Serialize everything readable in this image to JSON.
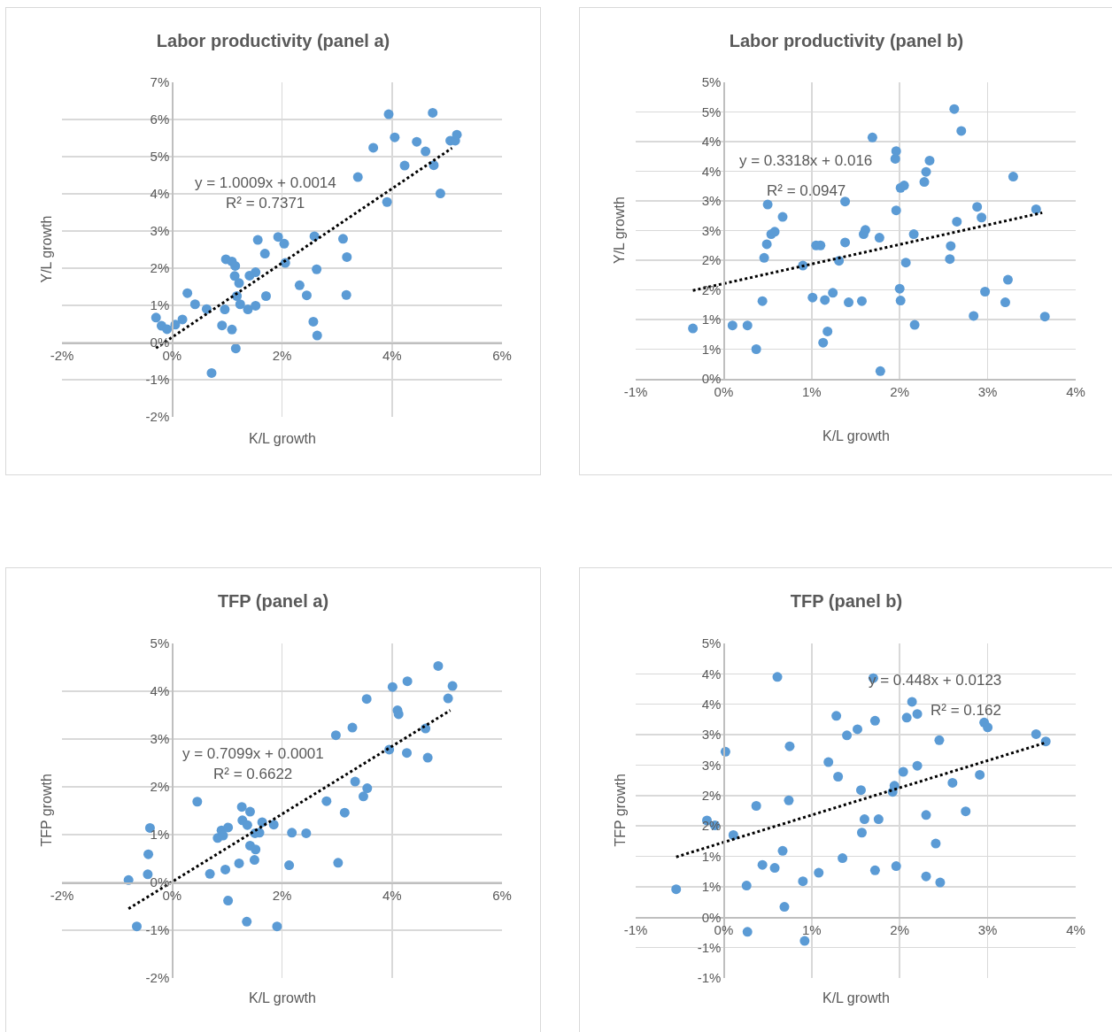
{
  "chart_data": [
    {
      "type": "scatter",
      "title": "Labor productivity (panel a)",
      "xlabel": "K/L growth",
      "ylabel": "Y/L growth",
      "grid": true,
      "marker": "circle",
      "xlim": [
        -0.02,
        0.06
      ],
      "xticks": [
        {
          "value": -0.02,
          "label": "-2%"
        },
        {
          "value": 0,
          "label": "0%"
        },
        {
          "value": 0.02,
          "label": "2%"
        },
        {
          "value": 0.04,
          "label": "4%"
        },
        {
          "value": 0.06,
          "label": "6%"
        }
      ],
      "ylim": [
        -0.02,
        0.07
      ],
      "yticks": [
        {
          "value": -0.02,
          "label": "-2%"
        },
        {
          "value": -0.01,
          "label": "-1%"
        },
        {
          "value": 0,
          "label": "0%"
        },
        {
          "value": 0.01,
          "label": "1%"
        },
        {
          "value": 0.02,
          "label": "2%"
        },
        {
          "value": 0.03,
          "label": "3%"
        },
        {
          "value": 0.04,
          "label": "4%"
        },
        {
          "value": 0.05,
          "label": "5%"
        },
        {
          "value": 0.06,
          "label": "6%"
        },
        {
          "value": 0.07,
          "label": "7%"
        }
      ],
      "annotations": [
        "y = 1.0009x + 0.0014",
        "R² = 0.7371"
      ],
      "series": [
        {
          "color": "#5b9bd5",
          "x": [
            -0.0029,
            -0.0019,
            -0.0009,
            0.0006,
            0.0019,
            0.0028,
            0.0042,
            0.0063,
            0.0072,
            0.0091,
            0.0096,
            0.0098,
            0.0109,
            0.0109,
            0.0115,
            0.0114,
            0.0116,
            0.0118,
            0.0122,
            0.0124,
            0.0138,
            0.0141,
            0.0152,
            0.0152,
            0.0156,
            0.0169,
            0.0171,
            0.0193,
            0.0204,
            0.0206,
            0.0232,
            0.0245,
            0.0257,
            0.0259,
            0.0263,
            0.0264,
            0.0311,
            0.0318,
            0.0317,
            0.0338,
            0.0366,
            0.0391,
            0.0394,
            0.0405,
            0.0423,
            0.0445,
            0.0461,
            0.0474,
            0.0476,
            0.0488,
            0.0506,
            0.0515,
            0.0518
          ],
          "values": [
            0.0067,
            0.0045,
            0.0036,
            0.0048,
            0.0062,
            0.0133,
            0.0103,
            0.009,
            -0.0082,
            0.0046,
            0.0089,
            0.0224,
            0.0035,
            0.0218,
            0.0206,
            0.0179,
            -0.0016,
            0.0125,
            0.016,
            0.0103,
            0.0089,
            0.018,
            0.0189,
            0.0099,
            0.0276,
            0.0239,
            0.0125,
            0.0284,
            0.0266,
            0.0214,
            0.0154,
            0.0127,
            0.0056,
            0.0286,
            0.0197,
            0.0019,
            0.0279,
            0.023,
            0.0128,
            0.0445,
            0.0524,
            0.0378,
            0.0614,
            0.0552,
            0.0476,
            0.054,
            0.0514,
            0.0618,
            0.0477,
            0.0401,
            0.0543,
            0.0543,
            0.0559
          ]
        },
        {
          "type": "line",
          "color": "#000000",
          "line_style": "dotted",
          "marker": "none",
          "x": [
            -0.0029,
            0.0509
          ],
          "values": [
            -0.0015,
            0.0523
          ]
        }
      ]
    },
    {
      "type": "scatter",
      "title": "Labor productivity (panel b)",
      "xlabel": "K/L growth",
      "ylabel": "Y/L growth",
      "grid": true,
      "marker": "circle",
      "xlim": [
        -0.01,
        0.04
      ],
      "xticks": [
        {
          "value": -0.01,
          "label": "-1%"
        },
        {
          "value": 0,
          "label": "0%"
        },
        {
          "value": 0.01,
          "label": "1%"
        },
        {
          "value": 0.02,
          "label": "2%"
        },
        {
          "value": 0.03,
          "label": "3%"
        },
        {
          "value": 0.04,
          "label": "4%"
        }
      ],
      "ylim": [
        0,
        0.05
      ],
      "yticks": [
        {
          "value": 0,
          "label": "0%"
        },
        {
          "value": 0.005,
          "label": "1%"
        },
        {
          "value": 0.01,
          "label": "1%"
        },
        {
          "value": 0.015,
          "label": "2%"
        },
        {
          "value": 0.02,
          "label": "2%"
        },
        {
          "value": 0.025,
          "label": "3%"
        },
        {
          "value": 0.03,
          "label": "3%"
        },
        {
          "value": 0.035,
          "label": "4%"
        },
        {
          "value": 0.04,
          "label": "4%"
        },
        {
          "value": 0.045,
          "label": "5%"
        },
        {
          "value": 0.05,
          "label": "5%"
        }
      ],
      "annotations": [
        "y = 0.3318x + 0.016",
        "R² = 0.0947"
      ],
      "series": [
        {
          "color": "#5b9bd5",
          "x": [
            -0.0035,
            0.001,
            0.0027,
            0.0037,
            0.0044,
            0.0046,
            0.0049,
            0.005,
            0.0054,
            0.0058,
            0.0067,
            0.009,
            0.0101,
            0.0105,
            0.011,
            0.0113,
            0.0115,
            0.0118,
            0.0124,
            0.0131,
            0.0138,
            0.0138,
            0.0142,
            0.0157,
            0.0159,
            0.0161,
            0.0169,
            0.0177,
            0.0178,
            0.0195,
            0.0196,
            0.0196,
            0.02,
            0.0201,
            0.0201,
            0.0205,
            0.0207,
            0.0216,
            0.0217,
            0.0228,
            0.023,
            0.0234,
            0.0257,
            0.0258,
            0.0262,
            0.0265,
            0.027,
            0.0284,
            0.0288,
            0.0293,
            0.0297,
            0.032,
            0.0323,
            0.0329,
            0.0355,
            0.0365
          ],
          "values": [
            0.0085,
            0.009,
            0.009,
            0.005,
            0.0131,
            0.0204,
            0.0227,
            0.0294,
            0.0244,
            0.0248,
            0.0273,
            0.0191,
            0.0137,
            0.0225,
            0.0225,
            0.0061,
            0.0133,
            0.008,
            0.0145,
            0.0199,
            0.0299,
            0.023,
            0.0129,
            0.0131,
            0.0244,
            0.0251,
            0.0407,
            0.0238,
            0.0013,
            0.0371,
            0.0384,
            0.0284,
            0.0152,
            0.0132,
            0.0322,
            0.0326,
            0.0196,
            0.0244,
            0.0091,
            0.0332,
            0.0349,
            0.0368,
            0.0202,
            0.0224,
            0.0455,
            0.0265,
            0.0418,
            0.0106,
            0.029,
            0.0272,
            0.0147,
            0.0129,
            0.0167,
            0.0341,
            0.0286,
            0.0105
          ]
        },
        {
          "type": "line",
          "color": "#000000",
          "line_style": "dotted",
          "marker": "none",
          "x": [
            -0.0035,
            0.0362
          ],
          "values": [
            0.0149,
            0.028
          ]
        }
      ]
    },
    {
      "type": "scatter",
      "title": "TFP (panel a)",
      "xlabel": "K/L growth",
      "ylabel": "TFP growth",
      "grid": true,
      "marker": "circle",
      "xlim": [
        -0.02,
        0.06
      ],
      "xticks": [
        {
          "value": -0.02,
          "label": "-2%"
        },
        {
          "value": 0,
          "label": "0%"
        },
        {
          "value": 0.02,
          "label": "2%"
        },
        {
          "value": 0.04,
          "label": "4%"
        },
        {
          "value": 0.06,
          "label": "6%"
        }
      ],
      "ylim": [
        -0.02,
        0.05
      ],
      "yticks": [
        {
          "value": -0.02,
          "label": "-2%"
        },
        {
          "value": -0.01,
          "label": "-1%"
        },
        {
          "value": 0,
          "label": "0%"
        },
        {
          "value": 0.01,
          "label": "1%"
        },
        {
          "value": 0.02,
          "label": "2%"
        },
        {
          "value": 0.03,
          "label": "3%"
        },
        {
          "value": 0.04,
          "label": "4%"
        },
        {
          "value": 0.05,
          "label": "5%"
        }
      ],
      "annotations": [
        "y = 0.7099x + 0.0001",
        "R² = 0.6622"
      ],
      "series": [
        {
          "color": "#5b9bd5",
          "x": [
            -0.0079,
            -0.0064,
            -0.0044,
            -0.0043,
            -0.004,
            0.0046,
            0.0069,
            0.0083,
            0.009,
            0.0093,
            0.0097,
            0.0102,
            0.0102,
            0.0122,
            0.0127,
            0.0128,
            0.0136,
            0.0137,
            0.0142,
            0.0142,
            0.015,
            0.0151,
            0.0152,
            0.0159,
            0.0164,
            0.0185,
            0.0191,
            0.0213,
            0.0218,
            0.0244,
            0.0281,
            0.0298,
            0.0302,
            0.0314,
            0.0328,
            0.0333,
            0.0348,
            0.0354,
            0.0355,
            0.0395,
            0.0401,
            0.041,
            0.0412,
            0.0427,
            0.0428,
            0.0461,
            0.0465,
            0.0484,
            0.0502,
            0.051
          ],
          "values": [
            0.0005,
            -0.0092,
            0.0017,
            0.0059,
            0.0114,
            0.0169,
            0.0018,
            0.0093,
            0.0109,
            0.0098,
            0.0027,
            0.0115,
            -0.0038,
            0.004,
            0.0158,
            0.013,
            -0.0082,
            0.012,
            0.0148,
            0.0077,
            0.0047,
            0.0103,
            0.0069,
            0.0104,
            0.0126,
            0.0121,
            -0.0092,
            0.0036,
            0.0104,
            0.0103,
            0.017,
            0.0308,
            0.0041,
            0.0146,
            0.0324,
            0.0211,
            0.018,
            0.0384,
            0.0197,
            0.0278,
            0.0409,
            0.036,
            0.0352,
            0.0271,
            0.0421,
            0.0322,
            0.0261,
            0.0453,
            0.0385,
            0.0411
          ]
        },
        {
          "type": "line",
          "color": "#000000",
          "line_style": "dotted",
          "marker": "none",
          "x": [
            -0.0079,
            0.0506
          ],
          "values": [
            -0.0055,
            0.036
          ]
        }
      ]
    },
    {
      "type": "scatter",
      "title": "TFP (panel b)",
      "xlabel": "K/L growth",
      "ylabel": "TFP growth",
      "grid": true,
      "marker": "circle",
      "xlim": [
        -0.01,
        0.04
      ],
      "xticks": [
        {
          "value": -0.01,
          "label": "-1%"
        },
        {
          "value": 0,
          "label": "0%"
        },
        {
          "value": 0.01,
          "label": "1%"
        },
        {
          "value": 0.02,
          "label": "2%"
        },
        {
          "value": 0.03,
          "label": "3%"
        },
        {
          "value": 0.04,
          "label": "4%"
        }
      ],
      "ylim": [
        -0.01,
        0.045
      ],
      "yticks": [
        {
          "value": -0.01,
          "label": "-1%"
        },
        {
          "value": -0.005,
          "label": "-1%"
        },
        {
          "value": 0,
          "label": "0%"
        },
        {
          "value": 0.005,
          "label": "1%"
        },
        {
          "value": 0.01,
          "label": "1%"
        },
        {
          "value": 0.015,
          "label": "2%"
        },
        {
          "value": 0.02,
          "label": "2%"
        },
        {
          "value": 0.025,
          "label": "3%"
        },
        {
          "value": 0.03,
          "label": "3%"
        },
        {
          "value": 0.035,
          "label": "4%"
        },
        {
          "value": 0.04,
          "label": "4%"
        },
        {
          "value": 0.045,
          "label": "5%"
        }
      ],
      "annotations": [
        "y = 0.448x + 0.0123",
        "R² = 0.162"
      ],
      "series": [
        {
          "color": "#5b9bd5",
          "x": [
            -0.0054,
            -0.0019,
            -0.001,
            0.0002,
            0.0011,
            0.0026,
            0.0027,
            0.0037,
            0.0044,
            0.0058,
            0.0061,
            0.0067,
            0.0069,
            0.0074,
            0.0075,
            0.009,
            0.0092,
            0.0108,
            0.0119,
            0.0128,
            0.013,
            0.0135,
            0.014,
            0.0152,
            0.0156,
            0.0157,
            0.016,
            0.017,
            0.0172,
            0.0172,
            0.0176,
            0.0192,
            0.0194,
            0.0196,
            0.0204,
            0.0208,
            0.0214,
            0.022,
            0.022,
            0.023,
            0.023,
            0.0241,
            0.0245,
            0.0246,
            0.026,
            0.0275,
            0.0291,
            0.0296,
            0.03,
            0.0355,
            0.0366
          ],
          "values": [
            0.0046,
            0.0159,
            0.0151,
            0.0272,
            0.0135,
            0.0052,
            -0.0024,
            0.0183,
            0.0086,
            0.0081,
            0.0395,
            0.0109,
            0.0017,
            0.0192,
            0.0281,
            0.0059,
            -0.0039,
            0.0073,
            0.0255,
            0.0331,
            0.0231,
            0.0097,
            0.0299,
            0.0309,
            0.0209,
            0.0139,
            0.0161,
            0.0393,
            0.0077,
            0.0323,
            0.0161,
            0.0206,
            0.0216,
            0.0084,
            0.0239,
            0.0328,
            0.0354,
            0.0334,
            0.0249,
            0.0168,
            0.0067,
            0.0121,
            0.0291,
            0.0057,
            0.0221,
            0.0174,
            0.0234,
            0.032,
            0.0312,
            0.0301,
            0.0289
          ]
        },
        {
          "type": "line",
          "color": "#000000",
          "line_style": "dotted",
          "marker": "none",
          "x": [
            -0.0054,
            0.0366
          ],
          "values": [
            0.0099,
            0.0287
          ]
        }
      ]
    }
  ]
}
